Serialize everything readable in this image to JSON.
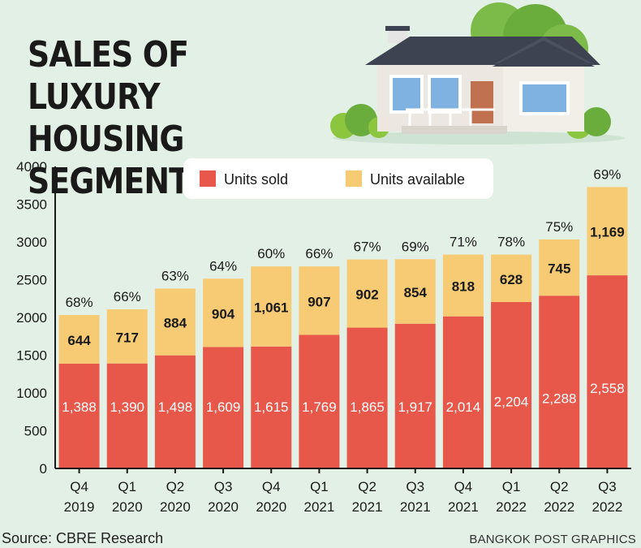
{
  "title": {
    "line1": "SALES OF LUXURY",
    "line2": "HOUSING SEGMENT"
  },
  "source": "Source: CBRE Research",
  "credit": "BANGKOK POST GRAPHICS",
  "colors": {
    "sold": "#e8584a",
    "available": "#f6cb73",
    "background": "#e3f0e5",
    "axis": "#1a1a1a"
  },
  "chart_data": {
    "type": "bar",
    "stacked": true,
    "categories": [
      [
        "Q4",
        "2019"
      ],
      [
        "Q1",
        "2020"
      ],
      [
        "Q2",
        "2020"
      ],
      [
        "Q3",
        "2020"
      ],
      [
        "Q4",
        "2020"
      ],
      [
        "Q1",
        "2021"
      ],
      [
        "Q2",
        "2021"
      ],
      [
        "Q3",
        "2021"
      ],
      [
        "Q4",
        "2021"
      ],
      [
        "Q1",
        "2022"
      ],
      [
        "Q2",
        "2022"
      ],
      [
        "Q3",
        "2022"
      ]
    ],
    "series": [
      {
        "name": "Units sold",
        "color": "#e8584a",
        "values": [
          1388,
          1390,
          1498,
          1609,
          1615,
          1769,
          1865,
          1917,
          2014,
          2204,
          2288,
          2558
        ],
        "labels": [
          "1,388",
          "1,390",
          "1,498",
          "1,609",
          "1,615",
          "1,769",
          "1,865",
          "1,917",
          "2,014",
          "2,204",
          "2,288",
          "2,558"
        ]
      },
      {
        "name": "Units available",
        "color": "#f6cb73",
        "values": [
          644,
          717,
          884,
          904,
          1061,
          907,
          902,
          854,
          818,
          628,
          745,
          1169
        ],
        "labels": [
          "644",
          "717",
          "884",
          "904",
          "1,061",
          "907",
          "902",
          "854",
          "818",
          "628",
          "745",
          "1,169"
        ]
      }
    ],
    "percent_labels": [
      "68%",
      "66%",
      "63%",
      "64%",
      "60%",
      "66%",
      "67%",
      "69%",
      "71%",
      "78%",
      "75%",
      "69%"
    ],
    "ylim": [
      0,
      4000
    ],
    "yticks": [
      "0",
      "500",
      "1000",
      "1500",
      "2000",
      "2500",
      "3000",
      "3500",
      "4000"
    ],
    "legend_position": "top-center",
    "grid": false
  }
}
